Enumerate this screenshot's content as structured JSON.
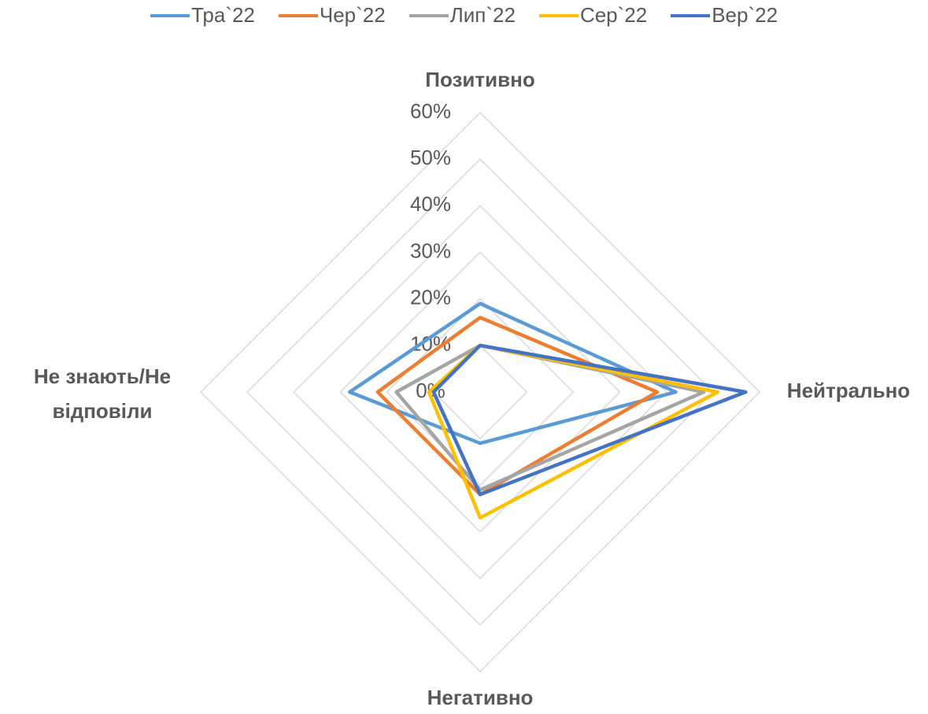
{
  "chart_data": {
    "type": "radar",
    "categories": [
      "Позитивно",
      "Нейтрально",
      "Негативно",
      "Не знають/Не відповіли"
    ],
    "series": [
      {
        "name": "Тра`22",
        "color": "#5b9bd5",
        "values": [
          19,
          42,
          11,
          28
        ]
      },
      {
        "name": "Чер`22",
        "color": "#ed7d31",
        "values": [
          16,
          38,
          22,
          22
        ]
      },
      {
        "name": "Лип`22",
        "color": "#a5a5a5",
        "values": [
          10,
          48,
          21,
          18
        ]
      },
      {
        "name": "Сер`22",
        "color": "#ffc000",
        "values": [
          10,
          51,
          27,
          11
        ]
      },
      {
        "name": "Вер`22",
        "color": "#4472c4",
        "values": [
          10,
          57,
          22,
          10
        ]
      }
    ],
    "rlim": [
      0,
      60
    ],
    "rticks": [
      {
        "value": 0,
        "label": "0%"
      },
      {
        "value": 10,
        "label": "10%"
      },
      {
        "value": 20,
        "label": "20%"
      },
      {
        "value": 30,
        "label": "30%"
      },
      {
        "value": 40,
        "label": "40%"
      },
      {
        "value": 50,
        "label": "50%"
      },
      {
        "value": 60,
        "label": "60%"
      }
    ],
    "grid": true,
    "legend": "top"
  }
}
